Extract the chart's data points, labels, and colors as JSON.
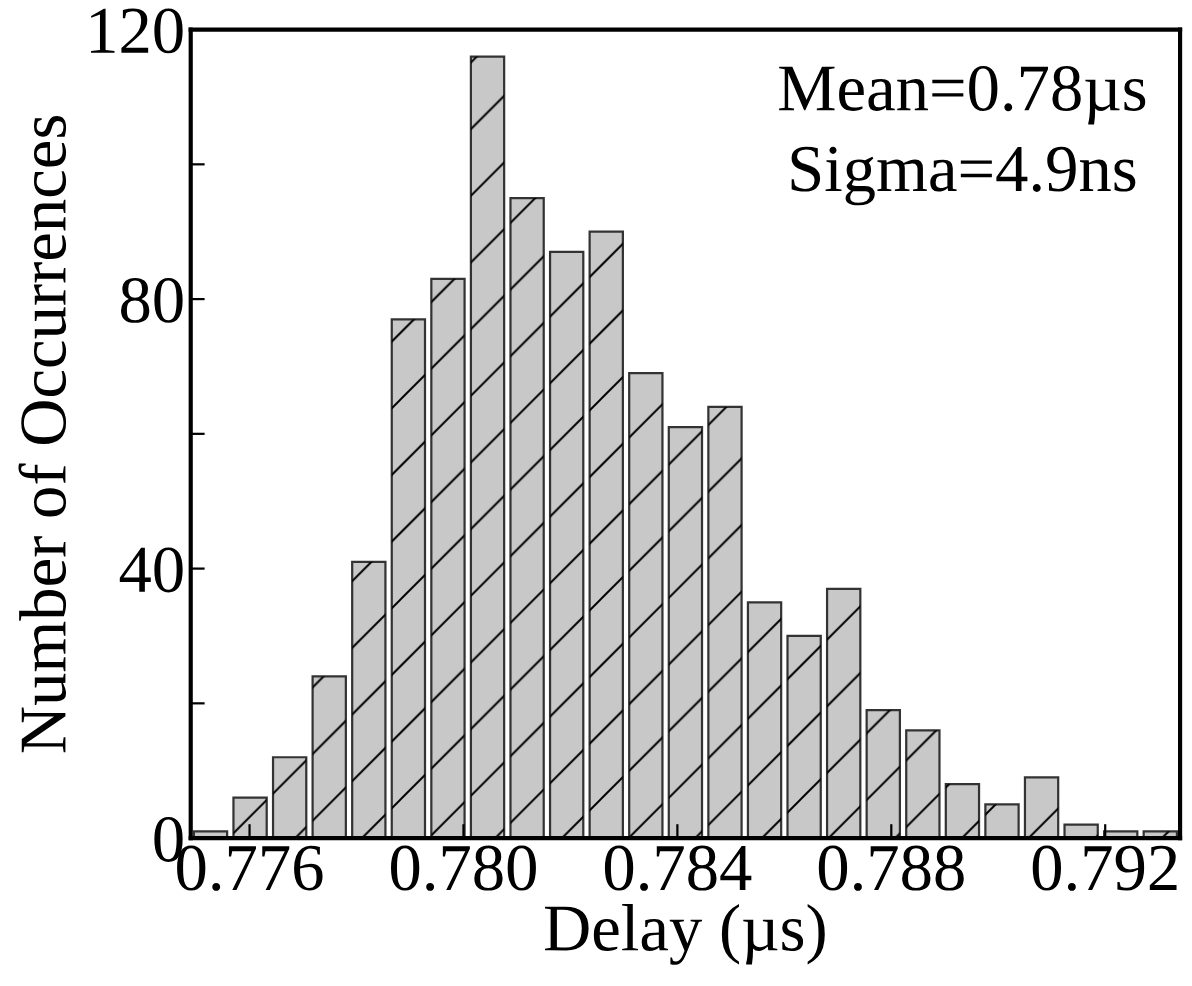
{
  "chart_data": {
    "type": "histogram",
    "xlabel": "Delay (µs)",
    "ylabel": "Number of Occurrences",
    "annotations": [
      "Mean=0.78µs",
      "Sigma=4.9ns"
    ],
    "bins": [
      0.7749,
      0.77564,
      0.77638,
      0.77712,
      0.77786,
      0.7786,
      0.77934,
      0.78008,
      0.78082,
      0.78156,
      0.7823,
      0.78304,
      0.78378,
      0.78452,
      0.78526,
      0.786,
      0.78674,
      0.78748,
      0.78822,
      0.78896,
      0.7897,
      0.79044,
      0.79118,
      0.79192,
      0.79266,
      0.7934
    ],
    "values": [
      1,
      6,
      12,
      24,
      41,
      77,
      83,
      116,
      95,
      87,
      90,
      69,
      61,
      64,
      35,
      30,
      37,
      19,
      16,
      8,
      5,
      9,
      2,
      1,
      1
    ],
    "color": "#c8c8c8",
    "xlim": [
      0.7749,
      0.7934
    ],
    "xticks": [
      0.776,
      {
        "value": 0.78,
        "label": "0.780"
      },
      0.784,
      0.788,
      0.792
    ],
    "ylim": [
      0,
      120
    ],
    "yticks": [
      0,
      {
        "value": 20,
        "label": null
      },
      40,
      {
        "value": 60,
        "label": null
      },
      80,
      {
        "value": 100,
        "label": null
      },
      120
    ],
    "grid": false,
    "legend": false
  }
}
